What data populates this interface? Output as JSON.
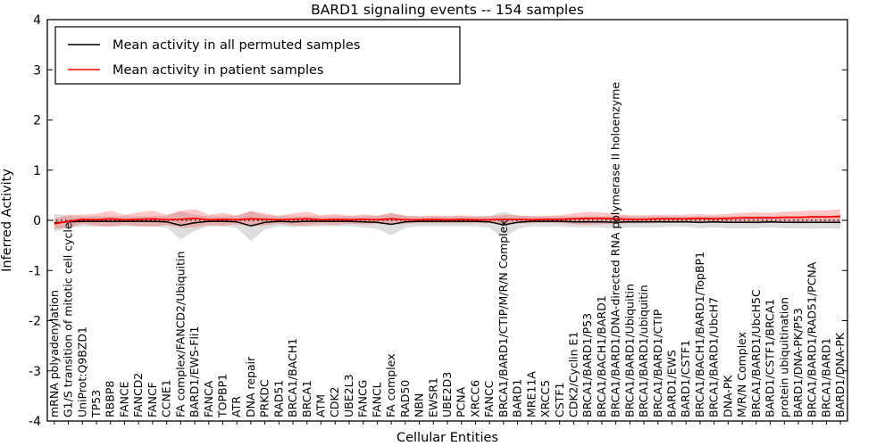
{
  "title": "BARD1 signaling events -- 154 samples",
  "xlabel": "Cellular Entities",
  "ylabel": "Inferred Activity",
  "legend": [
    {
      "label": "Mean activity in all permuted samples",
      "color": "#000000"
    },
    {
      "label": "Mean activity in patient samples",
      "color": "#ff0000"
    }
  ],
  "colors": {
    "permuted_line": "#000000",
    "patient_line": "#ff0000",
    "permuted_band": "rgba(0,0,0,0.13)",
    "patient_band": "rgba(255,0,0,0.22)",
    "zero_line": "#000000",
    "frame": "#000000",
    "background": "#ffffff"
  },
  "chart_data": {
    "type": "line",
    "title": "BARD1 signaling events -- 154 samples",
    "xlabel": "Cellular Entities",
    "ylabel": "Inferred Activity",
    "ylim": [
      -4,
      4
    ],
    "yticks": [
      4,
      3,
      2,
      1,
      0,
      -1,
      -2,
      -3,
      -4
    ],
    "grid": false,
    "zero_line_style": "dotted",
    "legend_position": "upper left",
    "categories": [
      "mRNA polyadenylation",
      "G1/S transition of mitotic cell cycle",
      "UniProt:Q9BZD1",
      "TP53",
      "RBBP8",
      "FANCE",
      "FANCD2",
      "FANCF",
      "CCNE1",
      "FA complex/FANCD2/Ubiquitin",
      "BARD1/EWS-Fli1",
      "FANCA",
      "TOPBP1",
      "ATR",
      "DNA repair",
      "PRKDC",
      "RAD51",
      "BRCA1/BACH1",
      "BRCA1",
      "ATM",
      "CDK2",
      "UBE2L3",
      "FANCG",
      "FANCL",
      "FA complex",
      "RAD50",
      "NBN",
      "EWSR1",
      "UBE2D3",
      "PCNA",
      "XRCC6",
      "FANCC",
      "BRCA1/BARD1/CTIP/M/R/N Complex",
      "BARD1",
      "MRE11A",
      "XRCC5",
      "CSTF1",
      "CDK2/Cyclin E1",
      "BRCA1/BARD1/P53",
      "BRCA1/BACH1/BARD1",
      "BRCA1/BARD1/DNA-directed RNA polymerase II holoenzyme",
      "BRCA1/BARD1/Ubiquitin",
      "BRCA1/BARD1/ubiquitin",
      "BRCA1/BARD1/CTIP",
      "BARD1/EWS",
      "BARD1/CSTF1",
      "BRCA1/BACH1/BARD1/TopBP1",
      "BRCA1/BARD1/UbcH7",
      "DNA-PK",
      "M/R/N Complex",
      "BRCA1/BARD1/UbcH5C",
      "BARD1/CSTF1/BRCA1",
      "protein ubiquitination",
      "BARD1/DNA-PK/P53",
      "BRCA1/BARD1/RAD51/PCNA",
      "BRCA1/BARD1",
      "BARD1/DNA-PK"
    ],
    "series": [
      {
        "name": "Mean activity in all permuted samples",
        "color": "#000000",
        "band_color": "rgba(0,0,0,0.13)",
        "values": [
          -0.05,
          -0.03,
          -0.02,
          -0.02,
          -0.02,
          -0.02,
          -0.02,
          -0.02,
          -0.03,
          -0.1,
          -0.05,
          -0.02,
          -0.02,
          -0.03,
          -0.11,
          -0.04,
          -0.02,
          -0.03,
          -0.02,
          -0.02,
          -0.02,
          -0.02,
          -0.03,
          -0.04,
          -0.08,
          -0.03,
          -0.02,
          -0.02,
          -0.02,
          -0.02,
          -0.02,
          -0.03,
          -0.09,
          -0.04,
          -0.02,
          -0.02,
          -0.02,
          -0.03,
          -0.03,
          -0.03,
          -0.04,
          -0.03,
          -0.03,
          -0.03,
          -0.03,
          -0.03,
          -0.04,
          -0.03,
          -0.04,
          -0.04,
          -0.04,
          -0.03,
          -0.04,
          -0.04,
          -0.04,
          -0.04,
          -0.04
        ],
        "band": [
          0.18,
          0.12,
          0.1,
          0.1,
          0.1,
          0.1,
          0.1,
          0.1,
          0.12,
          0.28,
          0.16,
          0.1,
          0.1,
          0.12,
          0.3,
          0.14,
          0.1,
          0.11,
          0.1,
          0.1,
          0.1,
          0.1,
          0.11,
          0.13,
          0.22,
          0.12,
          0.1,
          0.1,
          0.1,
          0.1,
          0.1,
          0.12,
          0.26,
          0.13,
          0.1,
          0.1,
          0.1,
          0.11,
          0.11,
          0.11,
          0.13,
          0.11,
          0.11,
          0.11,
          0.1,
          0.1,
          0.12,
          0.11,
          0.12,
          0.12,
          0.12,
          0.11,
          0.12,
          0.12,
          0.13,
          0.12,
          0.13
        ]
      },
      {
        "name": "Mean activity in patient samples",
        "color": "#ff0000",
        "band_color": "rgba(255,0,0,0.22)",
        "values": [
          -0.07,
          -0.02,
          0.02,
          0.01,
          0.03,
          0.01,
          0.02,
          0.03,
          0.01,
          0.02,
          0.04,
          0.01,
          0.02,
          0.01,
          0.03,
          0.02,
          0.01,
          0.02,
          0.03,
          0.01,
          0.02,
          0.01,
          0.02,
          0.01,
          0.03,
          0.01,
          0.01,
          0.02,
          0.01,
          0.02,
          0.01,
          0.01,
          0.02,
          0.02,
          0.01,
          0.02,
          0.02,
          0.03,
          0.04,
          0.04,
          0.03,
          0.02,
          0.02,
          0.03,
          0.03,
          0.03,
          0.04,
          0.03,
          0.04,
          0.05,
          0.05,
          0.05,
          0.06,
          0.06,
          0.07,
          0.07,
          0.08
        ],
        "band": [
          0.1,
          0.13,
          0.09,
          0.12,
          0.16,
          0.1,
          0.14,
          0.16,
          0.1,
          0.17,
          0.18,
          0.1,
          0.13,
          0.09,
          0.15,
          0.12,
          0.08,
          0.12,
          0.14,
          0.09,
          0.11,
          0.08,
          0.1,
          0.08,
          0.12,
          0.08,
          0.07,
          0.08,
          0.07,
          0.08,
          0.07,
          0.07,
          0.09,
          0.08,
          0.07,
          0.07,
          0.08,
          0.11,
          0.13,
          0.12,
          0.1,
          0.08,
          0.08,
          0.08,
          0.08,
          0.08,
          0.09,
          0.08,
          0.09,
          0.1,
          0.11,
          0.1,
          0.11,
          0.12,
          0.13,
          0.13,
          0.14
        ]
      }
    ]
  }
}
